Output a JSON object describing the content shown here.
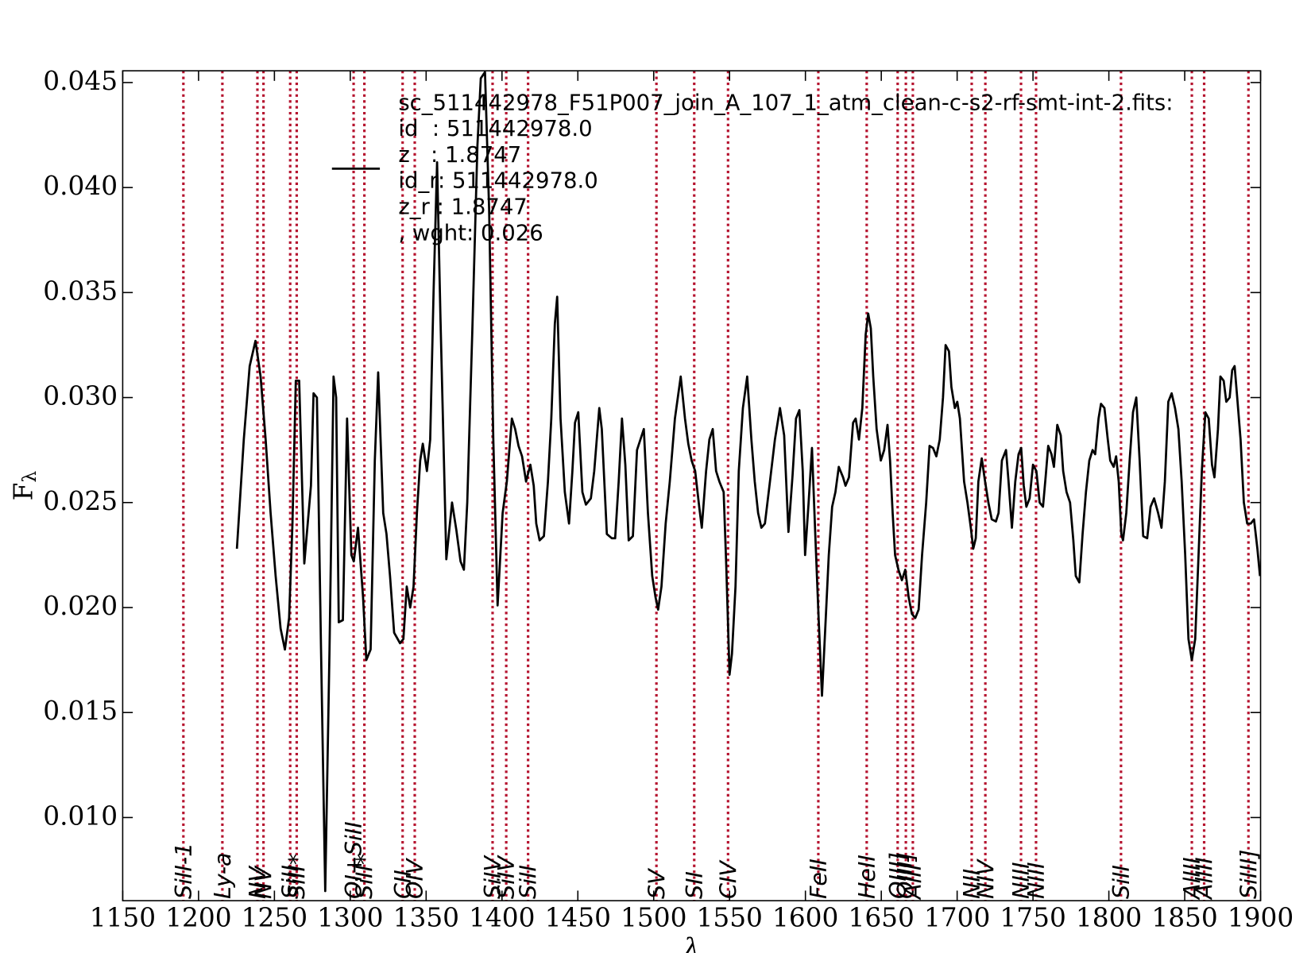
{
  "chart_data": {
    "type": "line",
    "ylabel": {
      "main": "F",
      "sub": "λ"
    },
    "xlabel": "λ",
    "xlim": [
      1150,
      1900
    ],
    "ylim": [
      0.00604,
      0.04556
    ],
    "xticks": [
      1150,
      1200,
      1250,
      1300,
      1350,
      1400,
      1450,
      1500,
      1550,
      1600,
      1650,
      1700,
      1750,
      1800,
      1850,
      1900
    ],
    "yticks": [
      {
        "value": 0.01,
        "label": "0.010"
      },
      0.015,
      {
        "value": 0.02,
        "label": "0.020"
      },
      0.025,
      {
        "value": 0.03,
        "label": "0.030"
      },
      0.035,
      {
        "value": 0.04,
        "label": "0.040"
      },
      0.045
    ],
    "legend": "upper center",
    "line_color": "#b5122e",
    "lines": [
      {
        "name": "SiII-1",
        "x": 1190
      },
      {
        "name": "Ly-a",
        "x": 1215.7
      },
      {
        "name": "NV",
        "x": 1238.8
      },
      {
        "name": "NV",
        "x": 1242.8
      },
      {
        "name": "SiII",
        "x": 1260.4
      },
      {
        "name": "SiII*",
        "x": 1264.7
      },
      {
        "name": "OI+SiII",
        "x": 1302.2
      },
      {
        "name": "SiII*",
        "x": 1309.3
      },
      {
        "name": "CII",
        "x": 1334.5
      },
      {
        "name": "OIV",
        "x": 1342.5
      },
      {
        "name": "SiIV",
        "x": 1393.8
      },
      {
        "name": "SiIV",
        "x": 1402.8
      },
      {
        "name": "SiII",
        "x": 1417.2
      },
      {
        "name": "SV",
        "x": 1501.8
      },
      {
        "name": "SII",
        "x": 1526.7
      },
      {
        "name": "CIV",
        "x": 1549
      },
      {
        "name": "FeII",
        "x": 1608.5
      },
      {
        "name": "HeII",
        "x": 1640.4
      },
      {
        "name": "OIII]",
        "x": 1660.8
      },
      {
        "name": "OIII]",
        "x": 1666.2
      },
      {
        "name": "AlII",
        "x": 1670.8
      },
      {
        "name": "NII",
        "x": 1709.6
      },
      {
        "name": "NIV",
        "x": 1718.6
      },
      {
        "name": "NIII",
        "x": 1742.1
      },
      {
        "name": "NIII",
        "x": 1752
      },
      {
        "name": "SiII",
        "x": 1808
      },
      {
        "name": "AlIII",
        "x": 1854.7
      },
      {
        "name": "AlIII",
        "x": 1862.8
      },
      {
        "name": "SiIII]",
        "x": 1892
      }
    ],
    "x": [
      1225.3,
      1229.8,
      1233.7,
      1237.5,
      1240.9,
      1244.2,
      1247.5,
      1250.8,
      1254.1,
      1256.9,
      1259.7,
      1261.9,
      1264.1,
      1266.3,
      1269.7,
      1274.1,
      1275.8,
      1278.0,
      1280.7,
      1283.5,
      1286.3,
      1289.0,
      1290.7,
      1292.4,
      1295.1,
      1297.9,
      1300.7,
      1302.3,
      1305.1,
      1308.4,
      1310.6,
      1313.4,
      1316.2,
      1318.4,
      1321.7,
      1323.9,
      1326.2,
      1328.9,
      1332.8,
      1335.0,
      1337.2,
      1339.5,
      1341.7,
      1343.9,
      1346.1,
      1347.8,
      1350.5,
      1352.7,
      1354.9,
      1357.2,
      1359.4,
      1363.3,
      1367.1,
      1369.9,
      1372.7,
      1374.9,
      1377.1,
      1380.4,
      1383.8,
      1386.0,
      1388.8,
      1391.5,
      1394.3,
      1397.1,
      1400.4,
      1403.2,
      1406.5,
      1408.7,
      1410.9,
      1413.2,
      1415.9,
      1418.7,
      1420.9,
      1422.6,
      1424.8,
      1427.6,
      1430.3,
      1432.5,
      1434.8,
      1436.4,
      1438.6,
      1441.4,
      1444.2,
      1446.4,
      1448.1,
      1450.3,
      1453.0,
      1455.3,
      1458.6,
      1460.8,
      1464.1,
      1465.8,
      1469.1,
      1472.4,
      1474.6,
      1476.9,
      1479.1,
      1481.3,
      1483.5,
      1486.3,
      1489.0,
      1493.5,
      1496.2,
      1499.0,
      1501.2,
      1502.9,
      1505.1,
      1507.9,
      1510.6,
      1514.0,
      1517.8,
      1520.6,
      1522.8,
      1525.0,
      1527.3,
      1530.0,
      1531.7,
      1534.5,
      1536.7,
      1538.9,
      1541.1,
      1543.3,
      1546.1,
      1547.8,
      1550.0,
      1551.6,
      1553.9,
      1556.1,
      1558.8,
      1561.6,
      1564.4,
      1566.6,
      1568.8,
      1571.0,
      1573.3,
      1576.6,
      1579.9,
      1583.2,
      1586.0,
      1588.8,
      1591.5,
      1593.8,
      1596.0,
      1598.2,
      1599.8,
      1602.1,
      1604.3,
      1606.5,
      1608.7,
      1610.9,
      1613.1,
      1615.4,
      1617.6,
      1619.8,
      1622.0,
      1624.8,
      1626.4,
      1628.7,
      1631.4,
      1633.1,
      1635.3,
      1637.5,
      1639.7,
      1641.4,
      1643.1,
      1644.7,
      1646.9,
      1649.7,
      1651.9,
      1654.1,
      1655.8,
      1657.5,
      1659.1,
      1661.3,
      1663.6,
      1665.8,
      1668.0,
      1670.2,
      1672.4,
      1674.6,
      1676.9,
      1679.6,
      1681.8,
      1684.1,
      1686.3,
      1688.5,
      1690.7,
      1692.4,
      1694.6,
      1696.2,
      1698.5,
      1700.1,
      1701.8,
      1704.6,
      1706.8,
      1709.0,
      1710.6,
      1712.3,
      1714.0,
      1716.2,
      1718.4,
      1720.6,
      1722.8,
      1725.6,
      1727.3,
      1729.5,
      1732.2,
      1733.9,
      1736.1,
      1738.3,
      1740.5,
      1742.2,
      1743.9,
      1745.6,
      1747.8,
      1750.0,
      1752.2,
      1754.4,
      1756.6,
      1758.3,
      1760.0,
      1762.2,
      1763.8,
      1766.0,
      1768.3,
      1769.9,
      1772.1,
      1774.4,
      1776.6,
      1778.2,
      1780.5,
      1782.7,
      1784.9,
      1787.1,
      1789.3,
      1791.0,
      1793.2,
      1794.8,
      1797.1,
      1799.3,
      1800.9,
      1803.2,
      1804.8,
      1806.5,
      1808.2,
      1809.3,
      1811.5,
      1813.7,
      1815.9,
      1818.1,
      1820.3,
      1822.6,
      1825.3,
      1827.5,
      1829.8,
      1832.5,
      1834.7,
      1836.9,
      1839.2,
      1841.4,
      1843.6,
      1845.8,
      1848.0,
      1850.3,
      1852.5,
      1854.7,
      1856.9,
      1859.1,
      1861.3,
      1863.6,
      1865.8,
      1868.0,
      1869.6,
      1871.9,
      1873.5,
      1875.7,
      1877.4,
      1879.6,
      1881.3,
      1882.9,
      1884.6,
      1886.8,
      1889.0,
      1891.2,
      1893.5,
      1895.7,
      1897.9,
      1899.6
    ],
    "series": [
      {
        "name": [
          "sc_511442978_F51P007_join_A_107_1_atm_clean-c-s2-rf-smt-int-2.fits:",
          "id  : 511442978.0",
          "z   : 1.8747",
          "id_r: 511442978.0",
          "z_r : 1.8747",
          ", wght: 0.026"
        ],
        "color": "#000000",
        "values": [
          0.0228,
          0.028,
          0.0315,
          0.0327,
          0.031,
          0.028,
          0.0245,
          0.0215,
          0.019,
          0.018,
          0.0195,
          0.024,
          0.0308,
          0.0308,
          0.0221,
          0.0258,
          0.0302,
          0.03,
          0.018,
          0.0065,
          0.018,
          0.031,
          0.03,
          0.0193,
          0.0194,
          0.029,
          0.0225,
          0.0222,
          0.0238,
          0.0205,
          0.0175,
          0.018,
          0.027,
          0.0312,
          0.0245,
          0.0235,
          0.0215,
          0.0188,
          0.0183,
          0.0185,
          0.021,
          0.02,
          0.021,
          0.0245,
          0.027,
          0.0278,
          0.0265,
          0.028,
          0.035,
          0.0412,
          0.034,
          0.0223,
          0.025,
          0.0237,
          0.0222,
          0.0218,
          0.025,
          0.033,
          0.042,
          0.0452,
          0.0455,
          0.039,
          0.028,
          0.0201,
          0.0245,
          0.026,
          0.029,
          0.0285,
          0.0277,
          0.0272,
          0.026,
          0.0268,
          0.0258,
          0.024,
          0.0232,
          0.0234,
          0.026,
          0.029,
          0.0335,
          0.0348,
          0.029,
          0.0255,
          0.024,
          0.0265,
          0.0288,
          0.0293,
          0.0255,
          0.0249,
          0.0252,
          0.0265,
          0.0295,
          0.0285,
          0.0235,
          0.0233,
          0.0233,
          0.026,
          0.029,
          0.0268,
          0.0232,
          0.0234,
          0.0275,
          0.0285,
          0.0245,
          0.0215,
          0.0205,
          0.0199,
          0.021,
          0.024,
          0.026,
          0.029,
          0.031,
          0.029,
          0.0278,
          0.027,
          0.0265,
          0.0248,
          0.0238,
          0.0265,
          0.028,
          0.0285,
          0.0265,
          0.026,
          0.0255,
          0.022,
          0.0168,
          0.0178,
          0.021,
          0.0265,
          0.0295,
          0.031,
          0.028,
          0.026,
          0.0245,
          0.0238,
          0.024,
          0.026,
          0.028,
          0.0295,
          0.0282,
          0.0236,
          0.0263,
          0.029,
          0.0294,
          0.0265,
          0.0225,
          0.025,
          0.0276,
          0.0235,
          0.0195,
          0.0158,
          0.019,
          0.0225,
          0.0248,
          0.0255,
          0.0267,
          0.0262,
          0.0258,
          0.0262,
          0.0288,
          0.029,
          0.028,
          0.0295,
          0.033,
          0.034,
          0.0333,
          0.031,
          0.0285,
          0.027,
          0.0275,
          0.0287,
          0.027,
          0.0245,
          0.0225,
          0.0218,
          0.0213,
          0.0218,
          0.0205,
          0.0197,
          0.0195,
          0.0199,
          0.0225,
          0.025,
          0.0277,
          0.0276,
          0.0272,
          0.028,
          0.03,
          0.0325,
          0.0322,
          0.0305,
          0.0295,
          0.0298,
          0.029,
          0.026,
          0.025,
          0.0238,
          0.0228,
          0.0233,
          0.026,
          0.0271,
          0.026,
          0.025,
          0.0242,
          0.0241,
          0.0245,
          0.027,
          0.0275,
          0.026,
          0.0238,
          0.026,
          0.0273,
          0.0276,
          0.0258,
          0.0248,
          0.0252,
          0.0268,
          0.0265,
          0.025,
          0.0248,
          0.0262,
          0.0277,
          0.0273,
          0.0267,
          0.0287,
          0.0282,
          0.0265,
          0.0255,
          0.025,
          0.0232,
          0.0215,
          0.0212,
          0.0235,
          0.0255,
          0.027,
          0.0275,
          0.0273,
          0.029,
          0.0297,
          0.0295,
          0.028,
          0.027,
          0.0267,
          0.0272,
          0.026,
          0.0235,
          0.0232,
          0.0245,
          0.027,
          0.0293,
          0.03,
          0.027,
          0.0234,
          0.0233,
          0.0248,
          0.0252,
          0.0245,
          0.0238,
          0.026,
          0.0298,
          0.0302,
          0.0295,
          0.0285,
          0.026,
          0.0225,
          0.0185,
          0.0175,
          0.0185,
          0.0225,
          0.0265,
          0.0293,
          0.029,
          0.0268,
          0.0262,
          0.0285,
          0.031,
          0.0308,
          0.0298,
          0.03,
          0.0313,
          0.0315,
          0.03,
          0.028,
          0.025,
          0.024,
          0.024,
          0.0242,
          0.0228,
          0.0215
        ]
      }
    ]
  }
}
